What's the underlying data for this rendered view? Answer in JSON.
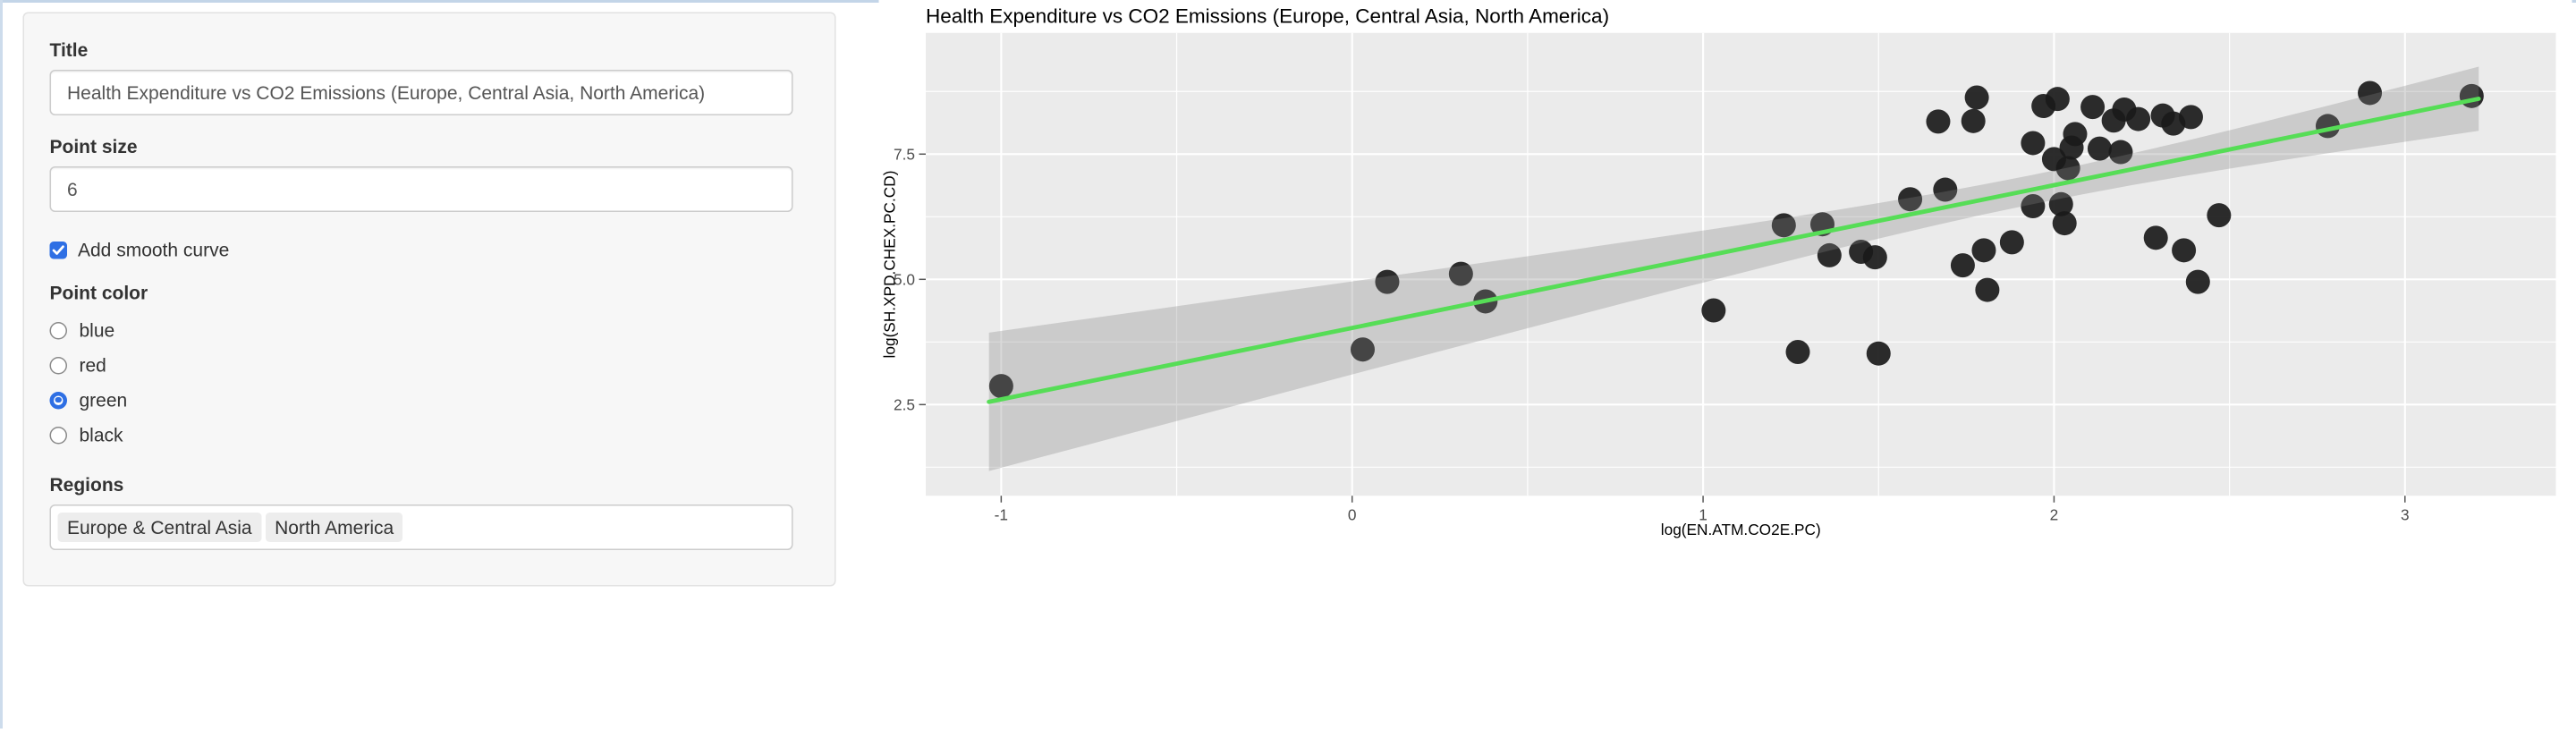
{
  "page": {
    "top_border_color": "#c3d5e8",
    "right_border_color": "#b3c9e0"
  },
  "sidebar": {
    "title": {
      "label": "Title",
      "value": "Health Expenditure vs CO2 Emissions (Europe, Central Asia, North America)"
    },
    "point_size": {
      "label": "Point size",
      "value": "6"
    },
    "smooth": {
      "label": "Add smooth curve",
      "checked": true
    },
    "point_color": {
      "label": "Point color",
      "selected": "green",
      "options": [
        "blue",
        "red",
        "green",
        "black"
      ]
    },
    "regions": {
      "label": "Regions",
      "values": [
        "Europe & Central Asia",
        "North America"
      ]
    }
  },
  "chart_data": {
    "type": "scatter",
    "title": "Health Expenditure vs CO2 Emissions (Europe, Central Asia, North America)",
    "xlabel": "log(EN.ATM.CO2E.PC)",
    "ylabel": "log(SH.XPD.CHEX.PC.CD)",
    "xlim": [
      -1.215,
      3.43
    ],
    "ylim": [
      0.68,
      9.92
    ],
    "x_ticks": [
      -1,
      0,
      1,
      2,
      3
    ],
    "y_ticks": [
      2.5,
      5.0,
      7.5
    ],
    "x_minor": [
      -0.5,
      0.5,
      1.5,
      2.5
    ],
    "y_minor": [
      1.25,
      3.75,
      6.25,
      8.75
    ],
    "grid": true,
    "legend": "none",
    "point_radius": 9,
    "points": [
      [
        -1.0,
        2.87
      ],
      [
        0.03,
        3.6
      ],
      [
        0.1,
        4.95
      ],
      [
        0.31,
        5.11
      ],
      [
        0.38,
        4.56
      ],
      [
        1.03,
        4.38
      ],
      [
        1.23,
        6.08
      ],
      [
        1.34,
        6.1
      ],
      [
        1.36,
        5.48
      ],
      [
        1.45,
        5.55
      ],
      [
        1.49,
        5.44
      ],
      [
        1.27,
        3.55
      ],
      [
        1.5,
        3.52
      ],
      [
        1.59,
        6.6
      ],
      [
        1.69,
        6.79
      ],
      [
        1.67,
        8.15
      ],
      [
        1.77,
        8.16
      ],
      [
        1.78,
        8.63
      ],
      [
        1.74,
        5.28
      ],
      [
        1.8,
        5.58
      ],
      [
        1.88,
        5.74
      ],
      [
        1.81,
        4.79
      ],
      [
        1.94,
        6.46
      ],
      [
        1.94,
        7.72
      ],
      [
        1.97,
        8.46
      ],
      [
        2.01,
        8.6
      ],
      [
        2.0,
        7.4
      ],
      [
        2.04,
        7.22
      ],
      [
        2.02,
        6.5
      ],
      [
        2.03,
        6.12
      ],
      [
        2.06,
        7.9
      ],
      [
        2.05,
        7.63
      ],
      [
        2.11,
        8.44
      ],
      [
        2.13,
        7.61
      ],
      [
        2.17,
        8.17
      ],
      [
        2.2,
        8.39
      ],
      [
        2.24,
        8.2
      ],
      [
        2.19,
        7.54
      ],
      [
        2.31,
        8.27
      ],
      [
        2.34,
        8.11
      ],
      [
        2.39,
        8.24
      ],
      [
        2.29,
        5.83
      ],
      [
        2.37,
        5.58
      ],
      [
        2.41,
        4.95
      ],
      [
        2.47,
        6.28
      ],
      [
        2.78,
        8.06
      ],
      [
        2.9,
        8.72
      ],
      [
        3.19,
        8.66
      ]
    ],
    "smooth": {
      "method": "lm",
      "slope": 1.425,
      "intercept": 4.03,
      "x_min": -1.035,
      "x_max": 3.21,
      "ribbon": {
        "center": 1.95,
        "base": 0.085,
        "quad": 0.205
      }
    },
    "colors": {
      "panel": "#EBEBEB",
      "grid": "#FFFFFF",
      "point": "#1a1a1a",
      "point_opacity": 0.92,
      "smooth_line": "#56DD56",
      "ribbon": "rgba(130,130,130,0.30)",
      "axis_text": "#4d4d4d",
      "tick": "#555555",
      "title_text": "#000000"
    }
  }
}
